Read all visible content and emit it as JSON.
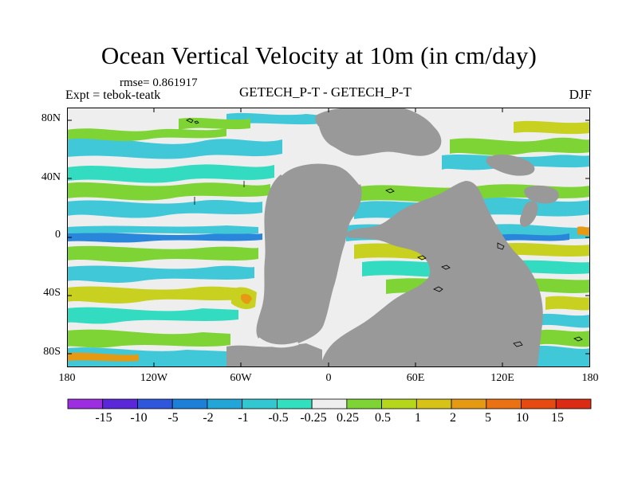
{
  "figure": {
    "title": "Ocean Vertical Velocity at 10m (in cm/day)",
    "rmse": "rmse= 0.861917",
    "experiment": "Expt = tebok-teatk",
    "comparison": "GETECH_P-T - GETECH_P-T",
    "season": "DJF"
  },
  "axes": {
    "y_ticks": [
      "80N",
      "40N",
      "0",
      "40S",
      "80S"
    ],
    "x_ticks": [
      "180",
      "120W",
      "60W",
      "0",
      "60E",
      "120E",
      "180"
    ]
  },
  "colorbar": {
    "labels": [
      "-15",
      "-10",
      "-5",
      "-2",
      "-1",
      "-0.5",
      "-0.25",
      "0.25",
      "0.5",
      "1",
      "2",
      "5",
      "10",
      "15"
    ],
    "colors": [
      "#9d2de0",
      "#5a28d8",
      "#2f57db",
      "#1c7fd8",
      "#22a6d8",
      "#33c7d1",
      "#32e0bf",
      "#eeeeee",
      "#7ed435",
      "#b5d61b",
      "#d7c317",
      "#e69a14",
      "#ea7212",
      "#e54a10",
      "#dc2b14"
    ]
  },
  "map_colors": {
    "land": "#999999",
    "neutral": "#eeeeee",
    "cyan": "#40c8d8",
    "teal": "#33dcc0",
    "blue": "#2a86da",
    "green": "#7ed435",
    "yellow": "#c8d020",
    "orange": "#e69a14"
  }
}
